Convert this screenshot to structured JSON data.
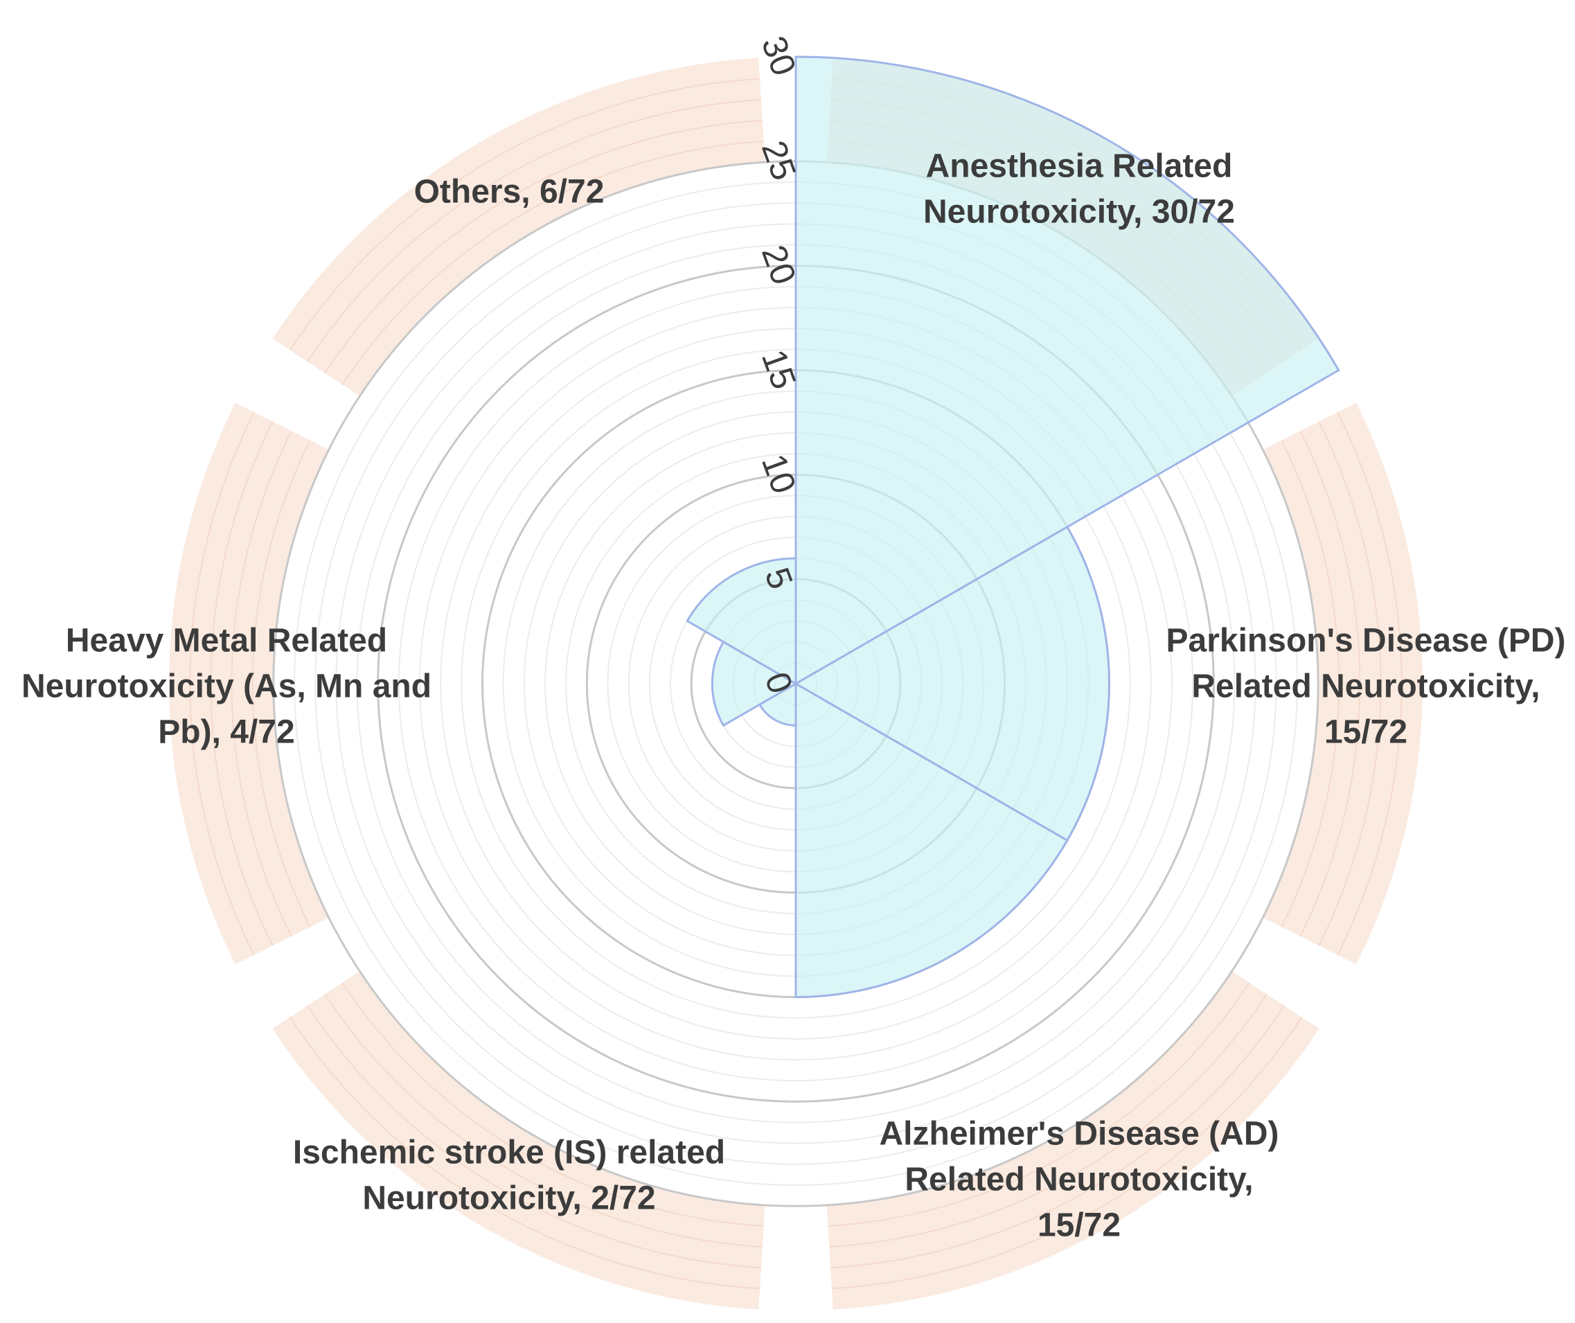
{
  "chart_data": {
    "type": "polar-bar",
    "title": "",
    "r_axis": {
      "ticks": [
        0,
        5,
        10,
        15,
        20,
        25,
        30
      ],
      "max": 30,
      "minor_step": 1
    },
    "categories": [
      "Anesthesia Related Neurotoxicity, 30/72",
      "Parkinson's Disease (PD) Related Neurotoxicity, 15/72",
      "Alzheimer's Disease (AD) Related Neurotoxicity, 15/72",
      "Ischemic stroke (IS) related Neurotoxicity, 2/72",
      "Heavy Metal Related Neurotoxicity (As, Mn and Pb), 4/72",
      "Others, 6/72"
    ],
    "label_lines": [
      [
        "Anesthesia Related",
        "Neurotoxicity, 30/72"
      ],
      [
        "Parkinson's Disease (PD)",
        "Related Neurotoxicity,",
        "15/72"
      ],
      [
        "Alzheimer's Disease (AD)",
        "Related Neurotoxicity,",
        "15/72"
      ],
      [
        "Ischemic stroke (IS) related",
        "Neurotoxicity, 2/72"
      ],
      [
        "Heavy Metal Related",
        "Neurotoxicity (As, Mn and",
        "Pb), 4/72"
      ],
      [
        "Others, 6/72"
      ]
    ],
    "values": [
      30,
      15,
      15,
      2,
      4,
      6
    ],
    "total": 72,
    "colors": {
      "bar_fill": "#c9f1f4",
      "bar_stroke": "#9fb4e8",
      "outer_band": "#f9e6da",
      "grid_major": "#c8c8c8",
      "grid_minor": "#ececec",
      "text": "#3c3c3c"
    },
    "grid": true,
    "legend": "none"
  }
}
